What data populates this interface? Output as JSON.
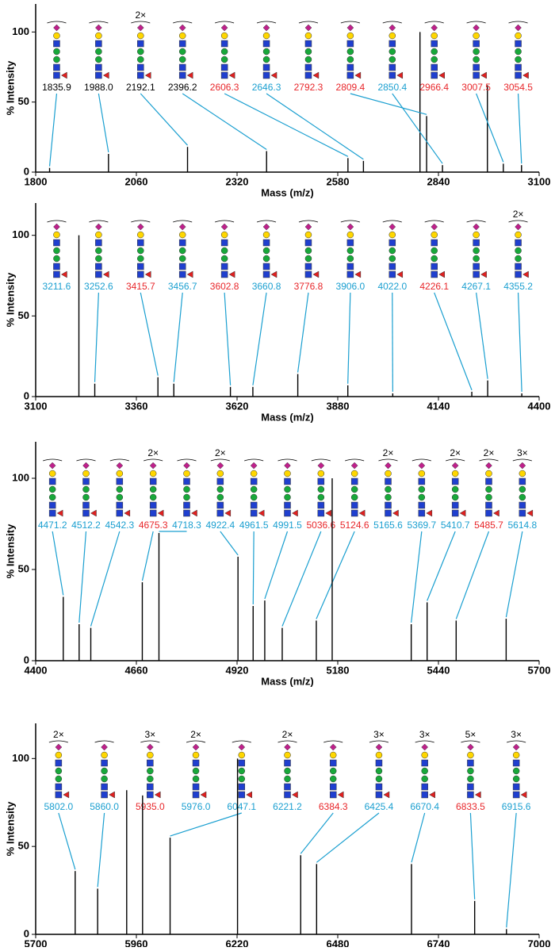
{
  "chart_data": [
    {
      "type": "spectrum",
      "xlabel": "Mass (m/z)",
      "ylabel": "% Intensity",
      "color": "#000000",
      "xlim": [
        1800,
        3100
      ],
      "xticks": [
        1800,
        2060,
        2320,
        2580,
        2840,
        3100
      ],
      "ylim": [
        0,
        120
      ],
      "yticks": [
        0,
        50,
        100
      ],
      "x": [
        1835.9,
        1988.0,
        2192.1,
        2396.2,
        2606.3,
        2646.3,
        2792.3,
        2809.4,
        2850.4,
        2966.4,
        3007.5,
        3054.5
      ],
      "values": [
        3,
        13,
        18,
        15,
        10,
        8,
        100,
        40,
        5,
        62,
        6,
        5
      ],
      "labels": [
        "1835.9",
        "1988.0",
        "2192.1",
        "2396.2",
        "2606.3",
        "2646.3",
        "2792.3",
        "2809.4",
        "2850.4",
        "2966.4",
        "3007.5",
        "3054.5"
      ],
      "label_colors": [
        "#000000",
        "#000000",
        "#000000",
        "#000000",
        "#e8262a",
        "#1a9fd0",
        "#e8262a",
        "#e8262a",
        "#1a9fd0",
        "#e8262a",
        "#e8262a",
        "#e8262a"
      ],
      "multipliers": [
        null,
        null,
        "2×",
        null,
        null,
        null,
        null,
        null,
        null,
        null,
        null,
        null
      ]
    },
    {
      "type": "spectrum",
      "xlabel": "Mass (m/z)",
      "ylabel": "% Intensity",
      "color": "#000000",
      "xlim": [
        3100,
        4400
      ],
      "xticks": [
        3100,
        3360,
        3620,
        3880,
        4140,
        4400
      ],
      "ylim": [
        0,
        120
      ],
      "yticks": [
        0,
        50,
        100
      ],
      "x": [
        3211.6,
        3252.6,
        3415.7,
        3456.7,
        3602.8,
        3660.8,
        3776.8,
        3906.0,
        4022.0,
        4226.1,
        4267.1,
        4355.2
      ],
      "values": [
        100,
        8,
        12,
        8,
        6,
        6,
        14,
        7,
        2,
        3,
        10,
        2
      ],
      "labels": [
        "3211.6",
        "3252.6",
        "3415.7",
        "3456.7",
        "3602.8",
        "3660.8",
        "3776.8",
        "3906.0",
        "4022.0",
        "4226.1",
        "4267.1",
        "4355.2"
      ],
      "label_colors": [
        "#1a9fd0",
        "#1a9fd0",
        "#e8262a",
        "#1a9fd0",
        "#e8262a",
        "#1a9fd0",
        "#e8262a",
        "#1a9fd0",
        "#1a9fd0",
        "#e8262a",
        "#1a9fd0",
        "#1a9fd0"
      ],
      "multipliers": [
        null,
        null,
        null,
        null,
        null,
        null,
        null,
        null,
        null,
        null,
        null,
        "2×"
      ]
    },
    {
      "type": "spectrum",
      "xlabel": "Mass (m/z)",
      "ylabel": "% Intensity",
      "color": "#000000",
      "xlim": [
        4400,
        5700
      ],
      "xticks": [
        4400,
        4660,
        4920,
        5180,
        5440,
        5700
      ],
      "ylim": [
        0,
        120
      ],
      "yticks": [
        0,
        50,
        100
      ],
      "x": [
        4471.2,
        4512.2,
        4542.3,
        4675.3,
        4718.3,
        4922.4,
        4961.5,
        4991.5,
        5036.6,
        5124.6,
        5165.6,
        5369.7,
        5410.7,
        5485.7,
        5614.8
      ],
      "values": [
        35,
        20,
        18,
        43,
        70,
        57,
        30,
        33,
        18,
        22,
        100,
        20,
        32,
        22,
        23
      ],
      "labels": [
        "4471.2",
        "4512.2",
        "4542.3",
        "4675.3",
        "4718.3",
        "4922.4",
        "4961.5",
        "4991.5",
        "5036.6",
        "5124.6",
        "5165.6",
        "5369.7",
        "5410.7",
        "5485.7",
        "5614.8"
      ],
      "label_colors": [
        "#1a9fd0",
        "#1a9fd0",
        "#1a9fd0",
        "#e8262a",
        "#1a9fd0",
        "#1a9fd0",
        "#1a9fd0",
        "#1a9fd0",
        "#e8262a",
        "#e8262a",
        "#1a9fd0",
        "#1a9fd0",
        "#1a9fd0",
        "#e8262a",
        "#1a9fd0"
      ],
      "multipliers": [
        null,
        null,
        null,
        "2×",
        null,
        "2×",
        null,
        null,
        null,
        null,
        "2×",
        null,
        "2×",
        "2×",
        "3×"
      ]
    },
    {
      "type": "spectrum",
      "xlabel": "Mass (m/z)",
      "ylabel": "% Intensity",
      "color": "#000000",
      "xlim": [
        5700,
        7000
      ],
      "xticks": [
        5700,
        5960,
        6220,
        6480,
        6740,
        7000
      ],
      "ylim": [
        0,
        120
      ],
      "yticks": [
        0,
        50,
        100
      ],
      "x": [
        5802.0,
        5860.0,
        5935.0,
        5976.0,
        6047.1,
        6221.2,
        6384.3,
        6425.4,
        6670.4,
        6833.5,
        6915.6
      ],
      "values": [
        36,
        26,
        82,
        79,
        55,
        100,
        45,
        40,
        40,
        19,
        3
      ],
      "labels": [
        "5802.0",
        "5860.0",
        "5935.0",
        "5976.0",
        "6047.1",
        "6221.2",
        "6384.3",
        "6425.4",
        "6670.4",
        "6833.5",
        "6915.6"
      ],
      "label_colors": [
        "#1a9fd0",
        "#1a9fd0",
        "#e8262a",
        "#1a9fd0",
        "#1a9fd0",
        "#1a9fd0",
        "#e8262a",
        "#1a9fd0",
        "#1a9fd0",
        "#e8262a",
        "#1a9fd0"
      ],
      "multipliers": [
        "2×",
        null,
        "3×",
        "2×",
        null,
        "2×",
        null,
        "3×",
        "3×",
        "5×",
        "3×"
      ]
    }
  ]
}
